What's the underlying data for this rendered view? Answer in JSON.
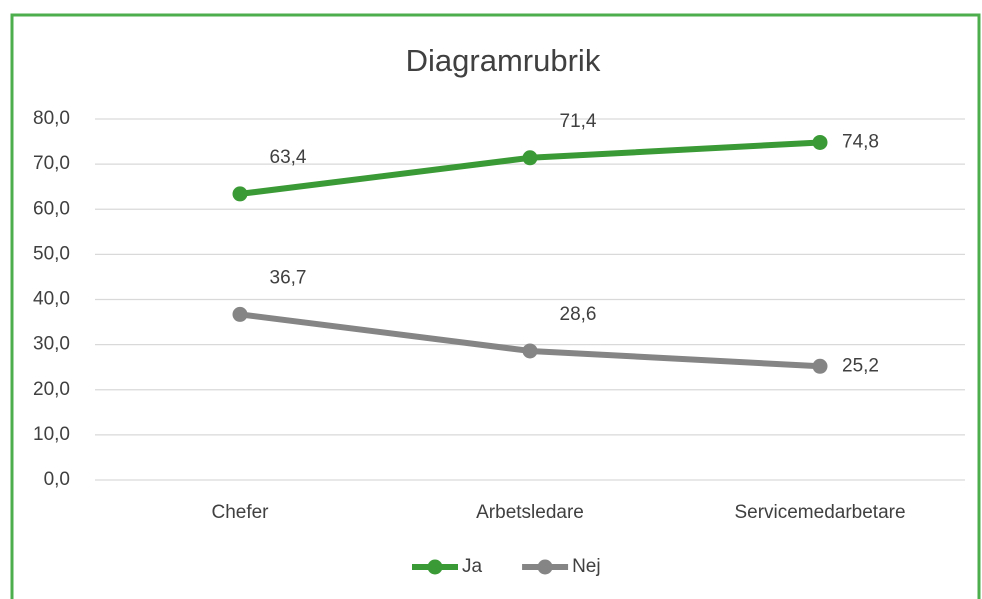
{
  "chart_data": {
    "type": "line",
    "title": "Diagramrubrik",
    "categories": [
      "Chefer",
      "Arbetsledare",
      "Servicemedarbetare"
    ],
    "series": [
      {
        "name": "Ja",
        "color": "#3a9a35",
        "values": [
          63.4,
          71.4,
          74.8
        ],
        "value_labels": [
          "63,4",
          "71,4",
          "74,8"
        ]
      },
      {
        "name": "Nej",
        "color": "#858585",
        "values": [
          36.7,
          28.6,
          25.2
        ],
        "value_labels": [
          "36,7",
          "28,6",
          "25,2"
        ]
      }
    ],
    "ylim": [
      0,
      80
    ],
    "yticks": [
      {
        "value": 0,
        "label": "0,0"
      },
      {
        "value": 10,
        "label": "10,0"
      },
      {
        "value": 20,
        "label": "20,0"
      },
      {
        "value": 30,
        "label": "30,0"
      },
      {
        "value": 40,
        "label": "40,0"
      },
      {
        "value": 50,
        "label": "50,0"
      },
      {
        "value": 60,
        "label": "60,0"
      },
      {
        "value": 70,
        "label": "70,0"
      },
      {
        "value": 80,
        "label": "80,0"
      }
    ],
    "grid": true,
    "legend": "bottom"
  }
}
